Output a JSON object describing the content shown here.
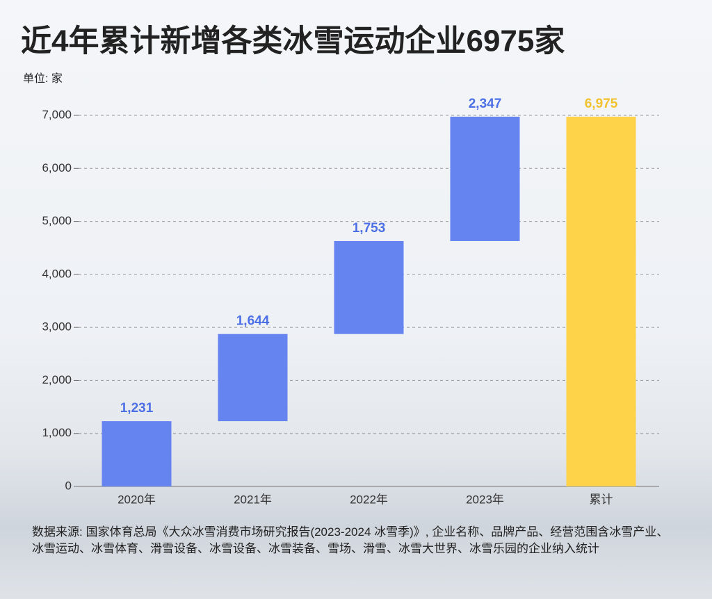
{
  "chart_data": {
    "type": "waterfall",
    "title": "近4年累计新增各类冰雪运动企业6975家",
    "y_label": "单位: 家",
    "categories": [
      "2020年",
      "2021年",
      "2022年",
      "2023年",
      "累计"
    ],
    "values": [
      1231,
      1644,
      1753,
      2347,
      6975
    ],
    "value_labels": [
      "1,231",
      "1,644",
      "1,753",
      "2,347",
      "6,975"
    ],
    "colors": [
      "#6684f0",
      "#6684f0",
      "#6684f0",
      "#6684f0",
      "#ffd349"
    ],
    "last_is_total": true,
    "ylim": [
      0,
      7000
    ],
    "yticks": [
      0,
      {
        "value": 1000,
        "label": "1,000"
      },
      {
        "value": 2000,
        "label": "2,000"
      },
      {
        "value": 3000,
        "label": "3,000"
      },
      {
        "value": 4000,
        "label": "4,000"
      },
      {
        "value": 5000,
        "label": "5,000"
      },
      {
        "value": 6000,
        "label": "6,000"
      },
      {
        "value": 7000,
        "label": "7,000"
      }
    ],
    "grid": true,
    "source": "数据来源: 国家体育总局《大众冰雪消费市场研究报告(2023-2024 冰雪季)》, 企业名称、品牌产品、经营范围含冰雪产业、冰雪运动、冰雪体育、滑雪设备、冰雪设备、冰雪装备、雪场、滑雪、冰雪大世界、冰雪乐园的企业纳入统计"
  }
}
